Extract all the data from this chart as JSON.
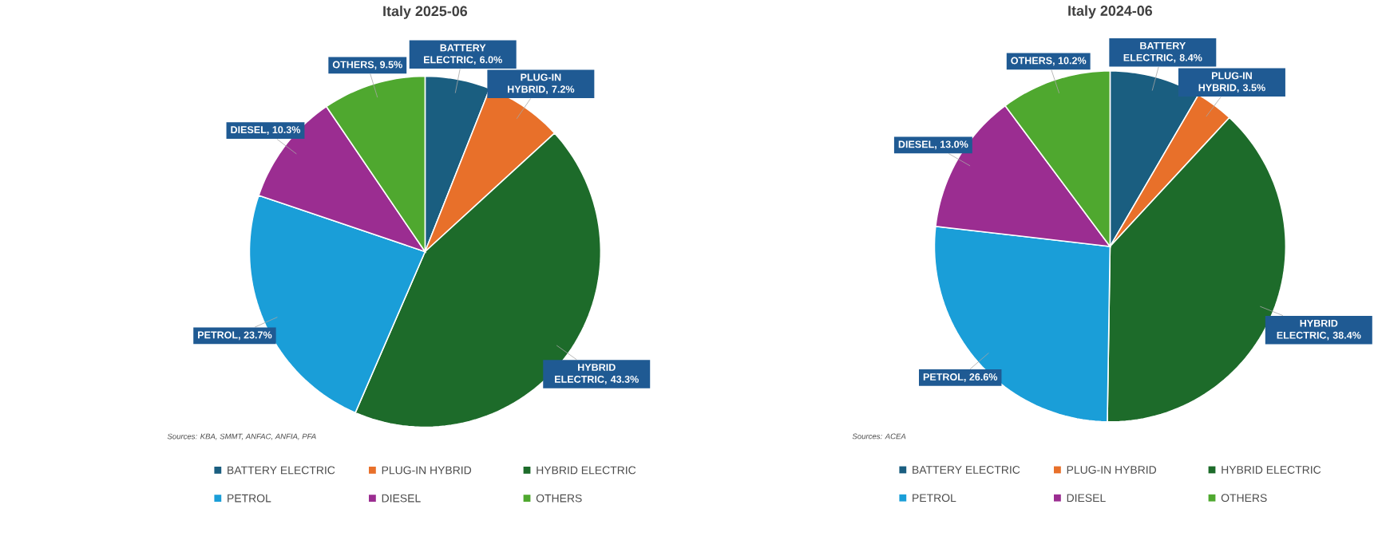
{
  "chart_data": [
    {
      "type": "pie",
      "title": "Italy  2025-06",
      "categories": [
        "BATTERY ELECTRIC",
        "PLUG-IN HYBRID",
        "HYBRID ELECTRIC",
        "PETROL",
        "DIESEL",
        "OTHERS"
      ],
      "values": [
        6.0,
        7.2,
        43.3,
        23.7,
        10.3,
        9.5
      ],
      "value_labels": [
        "BATTERY ELECTRIC, 6.0%",
        "PLUG-IN HYBRID, 7.2%",
        "HYBRID ELECTRIC, 43.3%",
        "PETROL, 23.7%",
        "DIESEL, 10.3%",
        "OTHERS, 9.5%"
      ],
      "colors": [
        "#1a5e80",
        "#e8702a",
        "#1d6b2a",
        "#1a9ed8",
        "#9b2d91",
        "#4fa82f"
      ],
      "legend": "bottom",
      "annotations": [
        "Sources: KBA, SMMT, ANFAC, ANFIA, PFA"
      ]
    },
    {
      "type": "pie",
      "title": "Italy 2024-06",
      "categories": [
        "BATTERY ELECTRIC",
        "PLUG-IN HYBRID",
        "HYBRID ELECTRIC",
        "PETROL",
        "DIESEL",
        "OTHERS"
      ],
      "values": [
        8.4,
        3.5,
        38.4,
        26.6,
        13.0,
        10.2
      ],
      "value_labels": [
        "BATTERY ELECTRIC, 8.4%",
        "PLUG-IN HYBRID, 3.5%",
        "HYBRID ELECTRIC, 38.4%",
        "PETROL, 26.6%",
        "DIESEL, 13.0%",
        "OTHERS, 10.2%"
      ],
      "colors": [
        "#1a5e80",
        "#e8702a",
        "#1d6b2a",
        "#1a9ed8",
        "#9b2d91",
        "#4fa82f"
      ],
      "legend": "bottom",
      "annotations": [
        "Sources: ACEA"
      ]
    }
  ]
}
